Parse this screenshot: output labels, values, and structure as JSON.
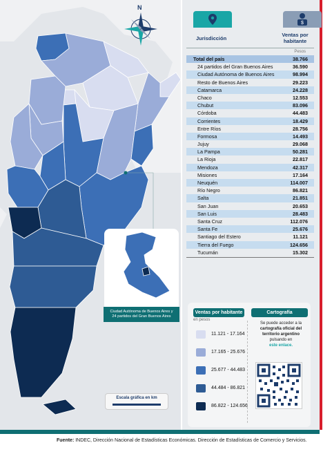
{
  "map": {
    "compass_label": "N",
    "colors": {
      "c1": "#d8ddf0",
      "c2": "#9aacd8",
      "c3": "#3c6fb6",
      "c4": "#2e5b94",
      "c5": "#0d2b52"
    }
  },
  "inset": {
    "caption_line1": "Ciudad Autónoma de Buenos Aires y",
    "caption_line2": "24 partidos del Gran Buenos Aires"
  },
  "scale": {
    "label": "Escala gráfica en km"
  },
  "table": {
    "col_jurisdiction": "Jurisdicción",
    "col_sales_line1": "Ventas por",
    "col_sales_line2": "habitante",
    "unit": "Pesos",
    "total": {
      "name": "Total del país",
      "value": "38.766"
    },
    "rows": [
      {
        "name": "24 partidos del Gran Buenos Aires",
        "value": "36.590"
      },
      {
        "name": "Ciudad Autónoma de Buenos Aires",
        "value": "98.994"
      },
      {
        "name": "Resto de Buenos Aires",
        "value": "29.223"
      },
      {
        "name": "Catamarca",
        "value": "24.228"
      },
      {
        "name": "Chaco",
        "value": "12.553"
      },
      {
        "name": "Chubut",
        "value": "83.096"
      },
      {
        "name": "Córdoba",
        "value": "44.483"
      },
      {
        "name": "Corrientes",
        "value": "18.429"
      },
      {
        "name": "Entre Ríos",
        "value": "28.756"
      },
      {
        "name": "Formosa",
        "value": "14.493"
      },
      {
        "name": "Jujuy",
        "value": "29.068"
      },
      {
        "name": "La Pampa",
        "value": "50.281"
      },
      {
        "name": "La Rioja",
        "value": "22.817"
      },
      {
        "name": "Mendoza",
        "value": "42.317"
      },
      {
        "name": "Misiones",
        "value": "17.164"
      },
      {
        "name": "Neuquén",
        "value": "114.007"
      },
      {
        "name": "Río Negro",
        "value": "86.821"
      },
      {
        "name": "Salta",
        "value": "21.851"
      },
      {
        "name": "San Juan",
        "value": "20.653"
      },
      {
        "name": "San Luis",
        "value": "28.483"
      },
      {
        "name": "Santa Cruz",
        "value": "112.076"
      },
      {
        "name": "Santa Fe",
        "value": "25.676"
      },
      {
        "name": "Santiago del Estero",
        "value": "11.121"
      },
      {
        "name": "Tierra del Fuego",
        "value": "124.656"
      },
      {
        "name": "Tucumán",
        "value": "15.302"
      }
    ]
  },
  "legend": {
    "title": "Ventas por habitante",
    "subtitle": "en pesos",
    "classes": [
      {
        "label": "11.121 - 17.164",
        "color": "#d8ddf0"
      },
      {
        "label": "17.165 - 25.676",
        "color": "#9aacd8"
      },
      {
        "label": "25.677 - 44.483",
        "color": "#3c6fb6"
      },
      {
        "label": "44.484 - 86.821",
        "color": "#2e5b94"
      },
      {
        "label": "86.822 - 124.656",
        "color": "#0d2b52"
      }
    ]
  },
  "cartography": {
    "title": "Cartografía",
    "text1": "Se puede acceder a la",
    "text2": "cartografía oficial del",
    "text3": "territorio argentino",
    "text4": "pulsando en",
    "link": "este enlace."
  },
  "source": {
    "label": "Fuente:",
    "text": "INDEC, Dirección Nacional de Estadísticas Económicas. Dirección de Estadísticas de Comercio y Servicios."
  }
}
